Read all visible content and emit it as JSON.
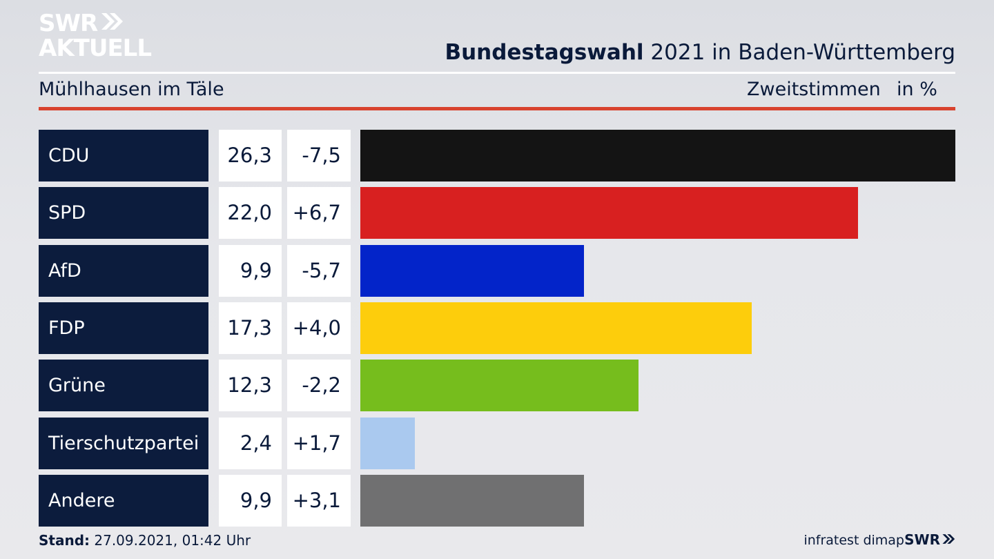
{
  "brand": {
    "line1": "SWR",
    "line2": "AKTUELL",
    "footer_logo": "SWR"
  },
  "header": {
    "title_bold": "Bundestagswahl",
    "title_rest": " 2021 in Baden-Württemberg",
    "location": "Mühlhausen im Täle",
    "metric": "Zweitstimmen",
    "unit": "in %"
  },
  "chart_data": {
    "type": "bar",
    "categories": [
      "CDU",
      "SPD",
      "AfD",
      "FDP",
      "Grüne",
      "Tierschutzpartei",
      "Andere"
    ],
    "values": [
      26.3,
      22.0,
      9.9,
      17.3,
      12.3,
      2.4,
      9.9
    ],
    "value_labels": [
      "26,3",
      "22,0",
      "9,9",
      "17,3",
      "12,3",
      "2,4",
      "9,9"
    ],
    "diff_labels": [
      "-7,5",
      "+6,7",
      "-5,7",
      "+4,0",
      "-2,2",
      "+1,7",
      "+3,1"
    ],
    "colors": [
      "#141414",
      "#d82020",
      "#0324c9",
      "#fdcd0c",
      "#76bd1d",
      "#aac9ef",
      "#707071"
    ],
    "xlim": [
      0,
      26.3
    ],
    "orientation": "horizontal"
  },
  "footer": {
    "stand_label": "Stand:",
    "stand_value": " 27.09.2021, 01:42 Uhr",
    "source": "infratest dimap"
  }
}
